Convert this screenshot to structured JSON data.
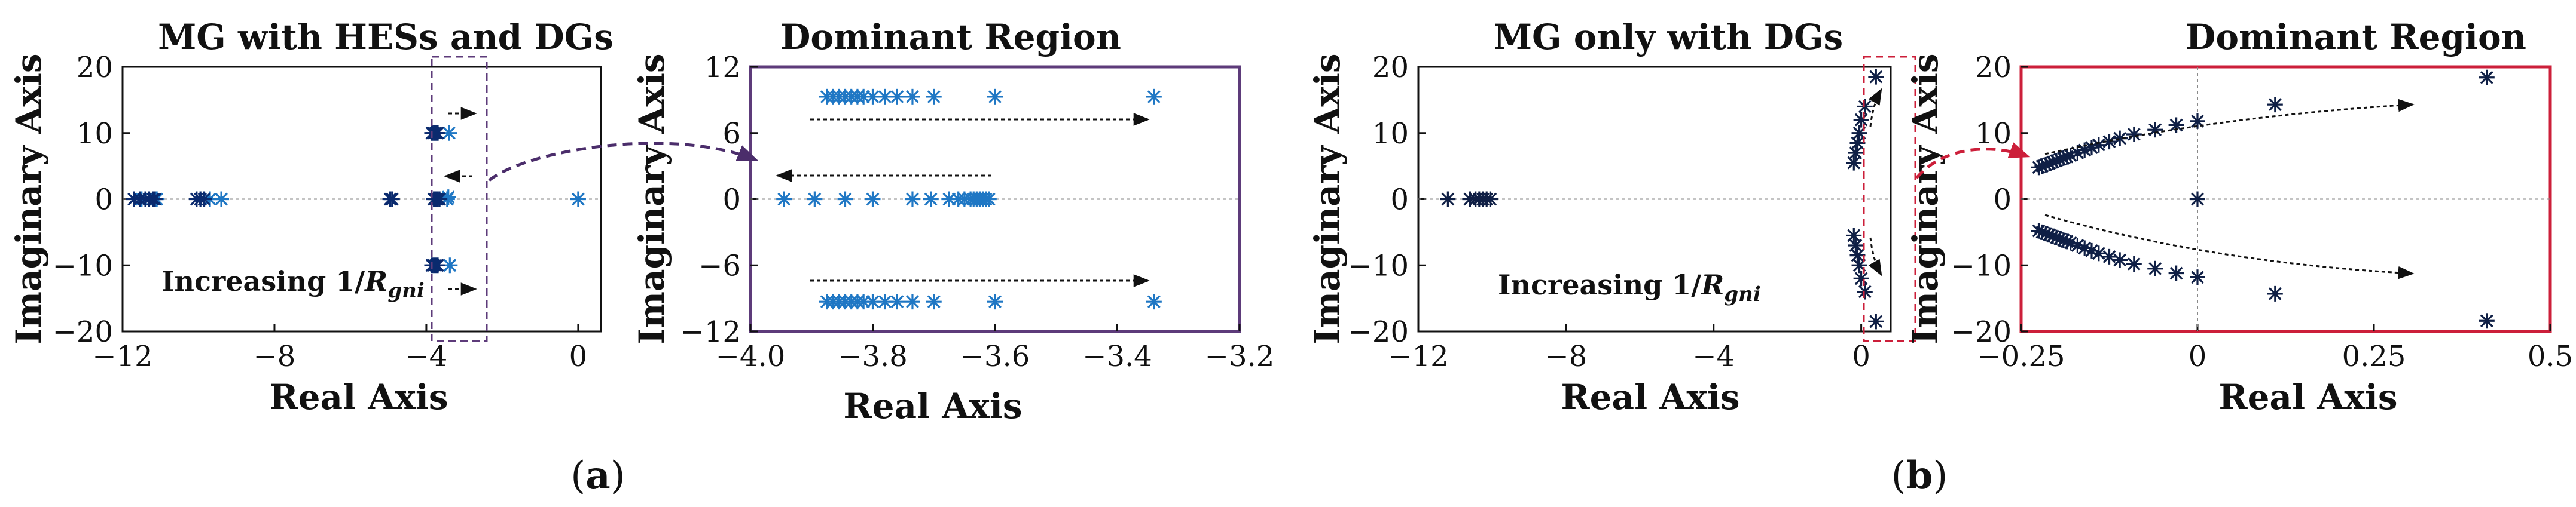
{
  "figure_labels": {
    "panel_a": "a",
    "panel_b": "b"
  },
  "colors": {
    "marker_light": "#1f77c4",
    "marker_dark": "#0a2a6e",
    "marker_navy": "#0f1f45",
    "frame_purple": "#5d3b7a",
    "frame_red": "#cc1f3a",
    "arrow_purple": "#4b2d6b",
    "arrow_red": "#cc1f3a"
  },
  "annotations": {
    "increasing_label_a": "Increasing 1/",
    "increasing_label_b": "Increasing 1/",
    "increasing_symbol": "R",
    "increasing_subscript": "gni"
  },
  "chart_data": [
    {
      "type": "scatter",
      "title": "MG with HESs and DGs",
      "xlabel": "Real Axis",
      "ylabel": "Imaginary Axis",
      "xlim": [
        -12,
        0.6
      ],
      "ylim": [
        -20,
        20
      ],
      "xticks": [
        -12,
        -8,
        -4,
        0
      ],
      "yticks": [
        20,
        10,
        0,
        -10,
        -20
      ],
      "xtick_labels": [
        "−12",
        "−8",
        "−4",
        "0"
      ],
      "ytick_labels": [
        "20",
        "10",
        "0",
        "−10",
        "−20"
      ],
      "grid": false,
      "zero_lines": "horizontal",
      "series": [
        {
          "name": "light",
          "x": [
            -11.1,
            -11.5,
            -9.7,
            -9.4,
            -3.45,
            -3.4,
            -3.38,
            -3.42,
            0
          ],
          "y": [
            0,
            0,
            0,
            0,
            0,
            10,
            -10,
            0.3,
            0
          ]
        },
        {
          "name": "dark",
          "x": [
            -11.7,
            -11.55,
            -11.4,
            -11.3,
            -11.2,
            -11.15,
            -10.05,
            -9.95,
            -9.85,
            -4.95,
            -4.9,
            -3.8,
            -3.75,
            -3.7,
            -3.65,
            -3.85,
            -3.8,
            -3.75,
            -3.7,
            -3.85,
            -3.8,
            -3.75,
            -3.7
          ],
          "y": [
            0,
            0,
            0,
            0,
            0,
            0,
            0,
            0,
            0,
            0,
            0,
            0,
            0,
            0,
            0,
            10,
            10,
            10,
            10,
            -10,
            -10,
            -10,
            -10
          ]
        }
      ]
    },
    {
      "type": "scatter",
      "title": "Dominant Region",
      "xlabel": "Real Axis",
      "ylabel": "Imaginary Axis",
      "xlim": [
        -4.0,
        -3.2
      ],
      "ylim": [
        -12,
        12
      ],
      "xticks": [
        -4.0,
        -3.8,
        -3.6,
        -3.4,
        -3.2
      ],
      "yticks": [
        12,
        6,
        0,
        -6,
        -12
      ],
      "xtick_labels": [
        "−4.0",
        "−3.8",
        "−3.6",
        "−3.4",
        "−3.2"
      ],
      "ytick_labels": [
        "12",
        "6",
        "0",
        "−6",
        "−12"
      ],
      "grid": false,
      "zero_lines": "horizontal",
      "series": [
        {
          "name": "upper",
          "x": [
            -3.875,
            -3.865,
            -3.855,
            -3.845,
            -3.835,
            -3.825,
            -3.815,
            -3.8,
            -3.78,
            -3.76,
            -3.735,
            -3.7,
            -3.6,
            -3.34
          ],
          "y": [
            9.3,
            9.3,
            9.3,
            9.3,
            9.3,
            9.3,
            9.3,
            9.3,
            9.3,
            9.3,
            9.3,
            9.3,
            9.3,
            9.3
          ]
        },
        {
          "name": "real",
          "x": [
            -3.945,
            -3.895,
            -3.845,
            -3.8,
            -3.735,
            -3.705,
            -3.675,
            -3.66,
            -3.65,
            -3.64,
            -3.635,
            -3.63,
            -3.625,
            -3.62,
            -3.615,
            -3.61
          ],
          "y": [
            0,
            0,
            0,
            0,
            0,
            0,
            0,
            0,
            0,
            0,
            0,
            0,
            0,
            0,
            0,
            0
          ]
        },
        {
          "name": "lower",
          "x": [
            -3.875,
            -3.865,
            -3.855,
            -3.845,
            -3.835,
            -3.825,
            -3.815,
            -3.8,
            -3.78,
            -3.76,
            -3.735,
            -3.7,
            -3.6,
            -3.34
          ],
          "y": [
            -9.3,
            -9.3,
            -9.3,
            -9.3,
            -9.3,
            -9.3,
            -9.3,
            -9.3,
            -9.3,
            -9.3,
            -9.3,
            -9.3,
            -9.3,
            -9.3
          ]
        }
      ]
    },
    {
      "type": "scatter",
      "title": "MG only with DGs",
      "xlabel": "Real Axis",
      "ylabel": "Imaginary Axis",
      "xlim": [
        -12,
        0.8
      ],
      "ylim": [
        -20,
        20
      ],
      "xticks": [
        -12,
        -8,
        -4,
        0
      ],
      "yticks": [
        20,
        10,
        0,
        -10,
        -20
      ],
      "xtick_labels": [
        "−12",
        "−8",
        "−4",
        "0"
      ],
      "ytick_labels": [
        "20",
        "10",
        "0",
        "−10",
        "−20"
      ],
      "grid": false,
      "zero_lines": "horizontal",
      "series": [
        {
          "name": "poles",
          "x": [
            -11.2,
            -10.6,
            -10.45,
            -10.35,
            -10.25,
            -10.15,
            -10.05,
            -0.2,
            -0.15,
            -0.1,
            -0.05,
            0,
            0.1,
            0.4,
            -0.2,
            -0.15,
            -0.1,
            -0.05,
            0,
            0.1,
            0.4
          ],
          "y": [
            0,
            0,
            0,
            0,
            0,
            0,
            0,
            5.5,
            7,
            8.5,
            10,
            12,
            14,
            18.5,
            -5.5,
            -7,
            -8.5,
            -10,
            -12,
            -14,
            -18.5
          ]
        }
      ]
    },
    {
      "type": "scatter",
      "title": "Dominant Region",
      "xlabel": "Real Axis",
      "ylabel": "Imaginary Axis",
      "xlim": [
        -0.25,
        0.5
      ],
      "ylim": [
        -20,
        20
      ],
      "xticks": [
        -0.25,
        0,
        0.25,
        0.5
      ],
      "yticks": [
        20,
        10,
        0,
        -10,
        -20
      ],
      "xtick_labels": [
        "−0.25",
        "0",
        "0.25",
        "0.5"
      ],
      "ytick_labels": [
        "20",
        "10",
        "0",
        "−10",
        "−20"
      ],
      "grid": false,
      "zero_lines": "both",
      "series": [
        {
          "name": "upper",
          "x": [
            -0.225,
            -0.22,
            -0.215,
            -0.21,
            -0.205,
            -0.2,
            -0.195,
            -0.19,
            -0.185,
            -0.18,
            -0.17,
            -0.16,
            -0.15,
            -0.14,
            -0.125,
            -0.11,
            -0.09,
            -0.06,
            -0.03,
            0,
            0.11,
            0.41
          ],
          "y": [
            4.8,
            5.0,
            5.2,
            5.4,
            5.6,
            5.8,
            6.0,
            6.2,
            6.4,
            6.6,
            7.0,
            7.4,
            7.8,
            8.2,
            8.7,
            9.2,
            9.8,
            10.5,
            11.2,
            11.8,
            14.3,
            18.4
          ]
        },
        {
          "name": "center",
          "x": [
            0
          ],
          "y": [
            0
          ]
        },
        {
          "name": "lower",
          "x": [
            -0.225,
            -0.22,
            -0.215,
            -0.21,
            -0.205,
            -0.2,
            -0.195,
            -0.19,
            -0.185,
            -0.18,
            -0.17,
            -0.16,
            -0.15,
            -0.14,
            -0.125,
            -0.11,
            -0.09,
            -0.06,
            -0.03,
            0,
            0.11,
            0.41
          ],
          "y": [
            -4.8,
            -5.0,
            -5.2,
            -5.4,
            -5.6,
            -5.8,
            -6.0,
            -6.2,
            -6.4,
            -6.6,
            -7.0,
            -7.4,
            -7.8,
            -8.2,
            -8.7,
            -9.2,
            -9.8,
            -10.5,
            -11.2,
            -11.8,
            -14.3,
            -18.4
          ]
        }
      ]
    }
  ]
}
